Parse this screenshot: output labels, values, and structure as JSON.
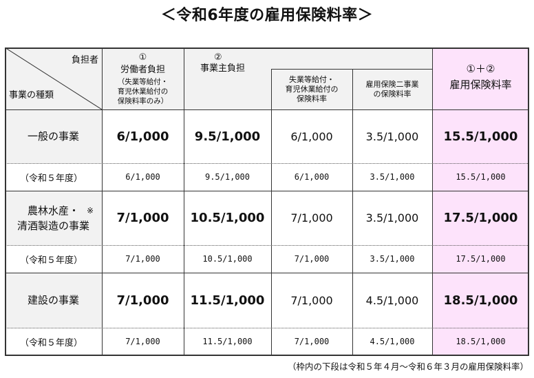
{
  "title": "＜令和6年度の雇用保険料率＞",
  "header": {
    "diag_top": "負担者",
    "diag_bottom": "事業の種類",
    "worker_num": "①",
    "worker_title": "労働者負担",
    "worker_sub": "（失業等給付・\n育児休業給付の\n保険料率のみ）",
    "employer_num": "②",
    "employer_title": "事業主負担",
    "employer_sub1": "失業等給付・\n育児休業給付の\n保険料率",
    "employer_sub2": "雇用保険二事業\nの保険料率",
    "total_num": "①＋②",
    "total_title": "雇用保険料率"
  },
  "rows": [
    {
      "label": "一般の事業",
      "mark": "",
      "prev_label": "（令和５年度）",
      "current": [
        "6/1,000",
        "9.5/1,000",
        "6/1,000",
        "3.5/1,000",
        "15.5/1,000"
      ],
      "previous": [
        "6/1,000",
        "9.5/1,000",
        "6/1,000",
        "3.5/1,000",
        "15.5/1,000"
      ]
    },
    {
      "label": "農林水産・\n清酒製造の事業",
      "mark": "※",
      "prev_label": "（令和５年度）",
      "current": [
        "7/1,000",
        "10.5/1,000",
        "7/1,000",
        "3.5/1,000",
        "17.5/1,000"
      ],
      "previous": [
        "7/1,000",
        "10.5/1,000",
        "7/1,000",
        "3.5/1,000",
        "17.5/1,000"
      ]
    },
    {
      "label": "建設の事業",
      "mark": "",
      "prev_label": "（令和５年度）",
      "current": [
        "7/1,000",
        "11.5/1,000",
        "7/1,000",
        "4.5/1,000",
        "18.5/1,000"
      ],
      "previous": [
        "7/1,000",
        "11.5/1,000",
        "7/1,000",
        "4.5/1,000",
        "18.5/1,000"
      ]
    }
  ],
  "footnote": "（枠内の下段は令和５年４月～令和６年３月の雇用保険料率）",
  "colors": {
    "header_bg": "#f2f2f2",
    "label_bg": "#f2f2f2",
    "total_bg": "#fde3fb"
  }
}
